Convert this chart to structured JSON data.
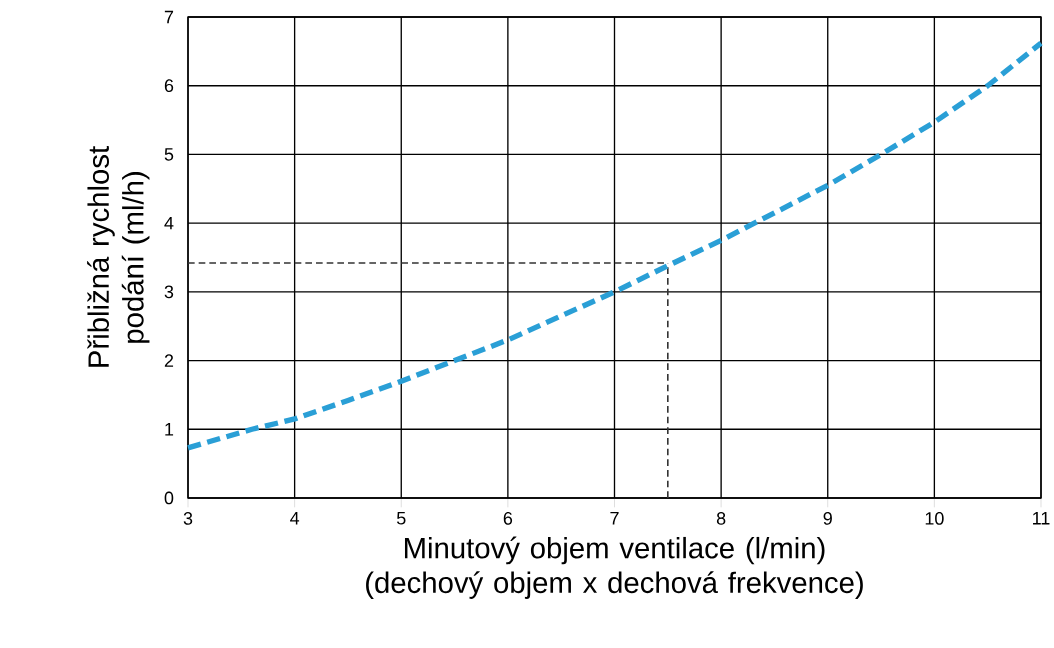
{
  "chart_data": {
    "type": "line",
    "xlabel": "Minutový objem ventilace (l/min) (dechový objem x dechová frekvence)",
    "ylabel": "Přibližná rychlost podání (ml/h)",
    "x": [
      3,
      3.6,
      4,
      4.5,
      5,
      5.5,
      6,
      6.5,
      7,
      7.5,
      8,
      8.5,
      9,
      9.5,
      10,
      10.5,
      11
    ],
    "series": [
      {
        "color": "#2a9fd6",
        "values": [
          0.73,
          1.0,
          1.15,
          1.42,
          1.7,
          2.0,
          2.3,
          2.65,
          3.0,
          3.38,
          3.75,
          4.15,
          4.55,
          5.0,
          5.47,
          6.0,
          6.62
        ]
      }
    ],
    "xlim": [
      3,
      11
    ],
    "ylim": [
      0,
      7
    ],
    "xticks": [
      3,
      4,
      5,
      6,
      7,
      8,
      9,
      10,
      11
    ],
    "yticks": [
      0,
      1,
      2,
      3,
      4,
      5,
      6,
      7
    ],
    "grid": true,
    "line_style": "dashed",
    "ref_lines": [
      {
        "axis": "y",
        "value": 3.42,
        "color": "#333333",
        "line_style": "dashed"
      },
      {
        "axis": "x",
        "value": 7.5,
        "color": "#333333",
        "line_style": "dashed"
      }
    ]
  }
}
